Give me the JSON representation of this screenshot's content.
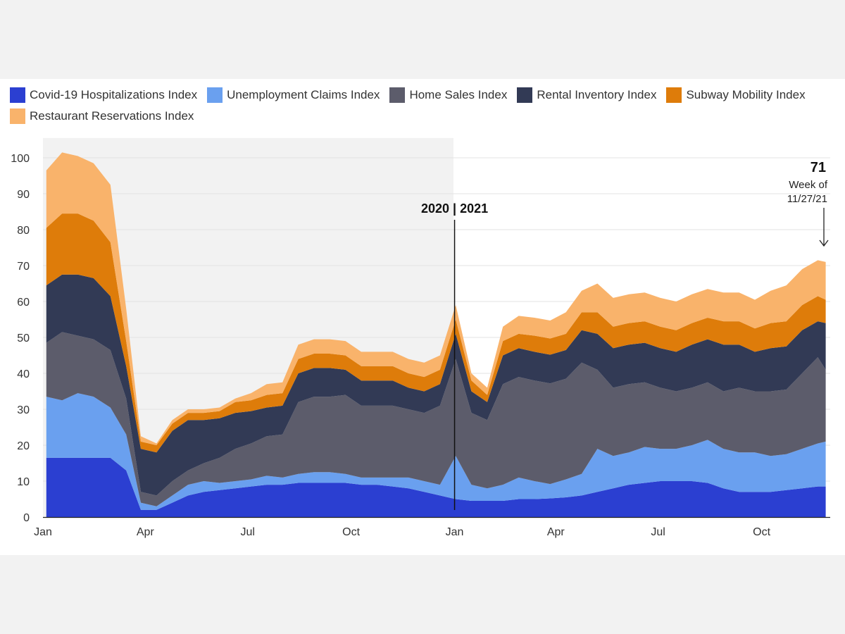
{
  "chart_data": {
    "type": "area",
    "stacked": true,
    "legend": [
      {
        "name": "Covid-19 Hospitalizations Index",
        "color": "#2b3fd1"
      },
      {
        "name": "Unemployment Claims Index",
        "color": "#6aa0ef"
      },
      {
        "name": "Home Sales Index",
        "color": "#5c5c6b"
      },
      {
        "name": "Rental Inventory Index",
        "color": "#323a55"
      },
      {
        "name": "Subway Mobility Index",
        "color": "#de7c0a"
      },
      {
        "name": "Restaurant Reservations Index",
        "color": "#f9b36b"
      }
    ],
    "legend_placement": "top-left",
    "x_range": [
      "2020-01-01",
      "2021-12-01"
    ],
    "x_tick_labels": [
      "Jan",
      "Apr",
      "Jul",
      "Oct",
      "Jan",
      "Apr",
      "Jul",
      "Oct"
    ],
    "x_tick_dates": [
      "2020-01-01",
      "2020-04-01",
      "2020-07-01",
      "2020-10-01",
      "2021-01-01",
      "2021-04-01",
      "2021-07-01",
      "2021-10-01"
    ],
    "ylim": [
      0,
      105
    ],
    "y_ticks": [
      0,
      10,
      20,
      30,
      40,
      50,
      60,
      70,
      80,
      90,
      100
    ],
    "grid": "horizontal",
    "shaded_period": {
      "start": "2020-01-01",
      "end": "2020-12-31"
    },
    "divider_label": "2020 | 2021",
    "annotation": {
      "value": "71",
      "text_line1": "Week of",
      "text_line2": "11/27/21"
    },
    "x": [
      "2020-01-04",
      "2020-01-18",
      "2020-02-01",
      "2020-02-15",
      "2020-03-01",
      "2020-03-15",
      "2020-03-28",
      "2020-04-11",
      "2020-04-25",
      "2020-05-09",
      "2020-05-23",
      "2020-06-06",
      "2020-06-20",
      "2020-07-04",
      "2020-07-18",
      "2020-08-01",
      "2020-08-15",
      "2020-08-29",
      "2020-09-12",
      "2020-09-26",
      "2020-10-10",
      "2020-10-24",
      "2020-11-07",
      "2020-11-21",
      "2020-12-05",
      "2020-12-19",
      "2021-01-02",
      "2021-01-16",
      "2021-01-30",
      "2021-02-13",
      "2021-02-27",
      "2021-03-13",
      "2021-03-27",
      "2021-04-10",
      "2021-04-24",
      "2021-05-08",
      "2021-05-22",
      "2021-06-05",
      "2021-06-19",
      "2021-07-03",
      "2021-07-17",
      "2021-07-31",
      "2021-08-14",
      "2021-08-28",
      "2021-09-11",
      "2021-09-25",
      "2021-10-09",
      "2021-10-23",
      "2021-11-06",
      "2021-11-20",
      "2021-11-27"
    ],
    "series": [
      {
        "name": "Covid-19 Hospitalizations Index",
        "values": [
          16.5,
          16.5,
          16.5,
          16.5,
          16.5,
          13,
          2,
          2,
          4,
          6,
          7,
          7.5,
          8,
          8.5,
          9,
          9,
          9.5,
          9.5,
          9.5,
          9.5,
          9,
          9,
          8.5,
          8,
          7,
          6,
          5,
          4.5,
          4.5,
          4.5,
          5,
          5,
          5.2,
          5.5,
          6,
          7,
          8,
          9,
          9.5,
          10,
          10,
          10,
          9.5,
          8,
          7,
          7,
          7,
          7.5,
          8,
          8.5,
          8.5
        ]
      },
      {
        "name": "Unemployment Claims Index",
        "values": [
          17,
          16,
          18,
          17,
          14,
          10,
          2,
          1,
          2,
          3,
          3,
          2,
          2,
          2,
          2.5,
          2,
          2.5,
          3,
          3,
          2.5,
          2,
          2,
          2.5,
          3,
          3,
          3,
          12,
          4.5,
          3.5,
          4.5,
          6,
          5,
          4,
          5,
          6,
          12,
          9,
          9,
          10,
          9,
          9,
          10,
          12,
          11,
          11,
          11,
          10,
          10,
          11,
          12,
          12.5
        ]
      },
      {
        "name": "Home Sales Index",
        "values": [
          15,
          19,
          16,
          16,
          16,
          10,
          3,
          3,
          4,
          4,
          5,
          7,
          9,
          10,
          11,
          12,
          20,
          21,
          21,
          22,
          20,
          20,
          20,
          19,
          19,
          22,
          27,
          20,
          19,
          28,
          28,
          28,
          28,
          28,
          31,
          22,
          19,
          19,
          18,
          17,
          16,
          16,
          16,
          16,
          18,
          17,
          18,
          18,
          21,
          24,
          20
        ]
      },
      {
        "name": "Rental Inventory Index",
        "values": [
          16,
          16,
          17,
          17,
          15,
          9,
          12,
          12,
          14,
          14,
          12,
          11,
          10,
          9,
          8,
          8,
          8,
          8,
          8,
          7,
          7,
          7,
          7,
          6,
          6,
          6,
          7,
          6,
          5,
          8,
          8,
          8,
          8,
          8,
          9,
          10,
          11,
          11,
          11,
          11,
          11,
          12,
          12,
          13,
          12,
          11,
          12,
          12,
          12,
          10,
          13
        ]
      },
      {
        "name": "Subway Mobility Index",
        "values": [
          16,
          17,
          17,
          16,
          15,
          7,
          2,
          2,
          2,
          2,
          2,
          2,
          3,
          3,
          3.5,
          3.5,
          4,
          4,
          4,
          4,
          4,
          4,
          4,
          4,
          4,
          4,
          4,
          3,
          2,
          4,
          4,
          4.5,
          4.5,
          4.5,
          5,
          6,
          6,
          6,
          6,
          6,
          6,
          6,
          6,
          6.5,
          6.5,
          6.5,
          7,
          7,
          7,
          7,
          6.5
        ]
      },
      {
        "name": "Restaurant Reservations Index",
        "values": [
          16,
          17,
          16,
          16,
          16,
          9,
          1.5,
          0.5,
          1,
          1,
          1,
          1,
          1,
          2,
          3,
          3,
          4,
          4,
          4,
          4,
          4,
          4,
          4,
          4,
          4,
          4,
          4,
          2,
          2,
          4,
          5,
          5,
          5,
          6,
          6,
          8,
          8,
          8,
          8,
          8,
          8,
          8,
          8,
          8,
          8,
          8,
          9,
          10,
          10,
          10,
          10.5
        ]
      }
    ]
  }
}
